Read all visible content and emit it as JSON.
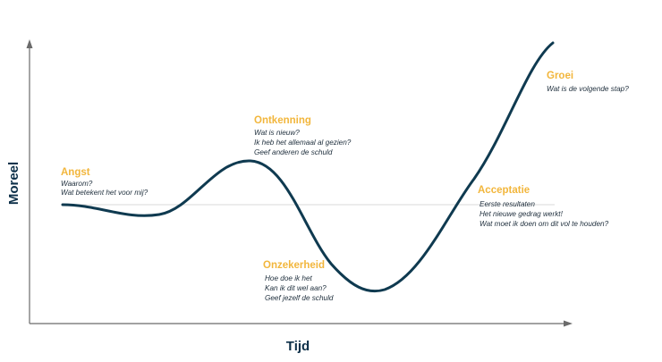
{
  "axes": {
    "x_label": "Tijd",
    "y_label": "Moreel"
  },
  "stages": [
    {
      "title": "Angst",
      "lines": [
        "Waarom?",
        "Wat betekent het voor mij?"
      ]
    },
    {
      "title": "Ontkenning",
      "lines": [
        "Wat is nieuw?",
        "Ik heb het allemaal al gezien?",
        "Geef anderen de schuld"
      ]
    },
    {
      "title": "Onzekerheid",
      "lines": [
        "Hoe doe ik het",
        "Kan ik dit wel aan?",
        "Geef jezelf de schuld"
      ]
    },
    {
      "title": "Acceptatie",
      "lines": [
        "Eerste resultaten",
        "Het nieuwe gedrag werkt!",
        "Wat moet ik doen om dit vol te houden?"
      ]
    },
    {
      "title": "Groei",
      "lines": [
        "Wat is de volgende stap?"
      ]
    }
  ],
  "colors": {
    "curve": "#0f3a50",
    "axis": "#6b6b6b",
    "baseline": "#d9d9d9",
    "stage_title": "#f2b63c",
    "axis_label": "#0c2f48"
  }
}
